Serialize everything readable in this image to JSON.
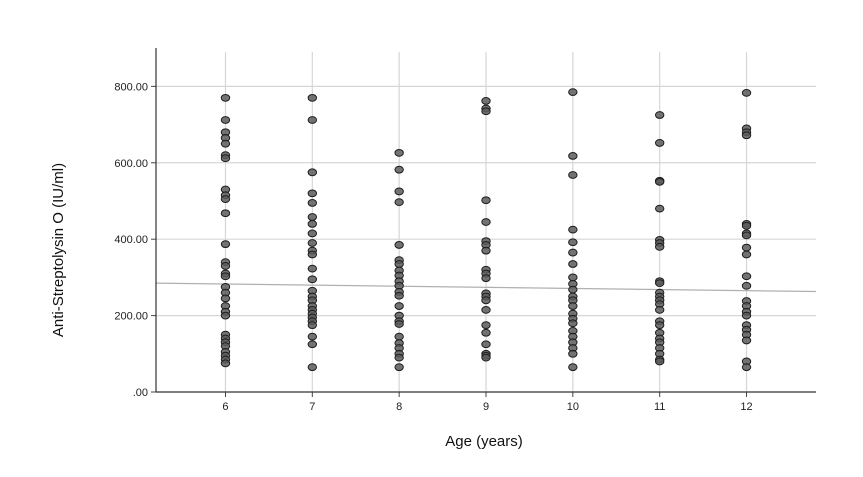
{
  "chart_data": {
    "type": "scatter",
    "xlabel": "Age (years)",
    "ylabel": "Anti-Streptolysin O (IU/ml)",
    "x_ticks": [
      "6",
      "7",
      "8",
      "9",
      "10",
      "11",
      "12"
    ],
    "y_ticks": [
      ".00",
      "200.00",
      "400.00",
      "600.00",
      "800.00"
    ],
    "xlim": [
      5.2,
      12.8
    ],
    "ylim": [
      0,
      890
    ],
    "grid": true,
    "point_color": "#5c5c5c",
    "fit_line_color": "#b0b0b0",
    "fit_line": {
      "x": [
        5.2,
        12.8
      ],
      "y": [
        285,
        263
      ]
    },
    "series": [
      {
        "x": 6,
        "y": [
          770,
          712,
          680,
          665,
          650,
          620,
          612,
          530,
          515,
          505,
          468,
          387,
          340,
          330,
          310,
          303,
          275,
          260,
          245,
          225,
          210,
          200,
          150,
          140,
          130,
          120,
          105,
          95,
          85,
          75
        ]
      },
      {
        "x": 7,
        "y": [
          770,
          712,
          575,
          520,
          495,
          458,
          440,
          415,
          390,
          370,
          360,
          323,
          295,
          265,
          250,
          240,
          225,
          215,
          205,
          195,
          185,
          175,
          145,
          125,
          65
        ]
      },
      {
        "x": 8,
        "y": [
          626,
          582,
          525,
          497,
          385,
          345,
          335,
          318,
          305,
          290,
          278,
          262,
          252,
          225,
          200,
          185,
          178,
          145,
          128,
          115,
          100,
          90,
          65
        ]
      },
      {
        "x": 9,
        "y": [
          762,
          742,
          735,
          502,
          445,
          395,
          385,
          370,
          320,
          310,
          298,
          258,
          250,
          240,
          215,
          175,
          155,
          125,
          100,
          95,
          90
        ]
      },
      {
        "x": 10,
        "y": [
          785,
          618,
          568,
          425,
          392,
          365,
          335,
          300,
          283,
          268,
          250,
          240,
          225,
          205,
          192,
          180,
          160,
          145,
          130,
          115,
          100,
          65
        ]
      },
      {
        "x": 11,
        "y": [
          725,
          652,
          553,
          550,
          480,
          398,
          390,
          380,
          290,
          285,
          260,
          250,
          240,
          230,
          215,
          185,
          175,
          155,
          140,
          130,
          115,
          100,
          85,
          80
        ]
      },
      {
        "x": 12,
        "y": [
          783,
          690,
          680,
          672,
          440,
          435,
          415,
          410,
          378,
          360,
          303,
          278,
          238,
          225,
          210,
          200,
          175,
          163,
          150,
          135,
          80,
          65
        ]
      }
    ]
  }
}
